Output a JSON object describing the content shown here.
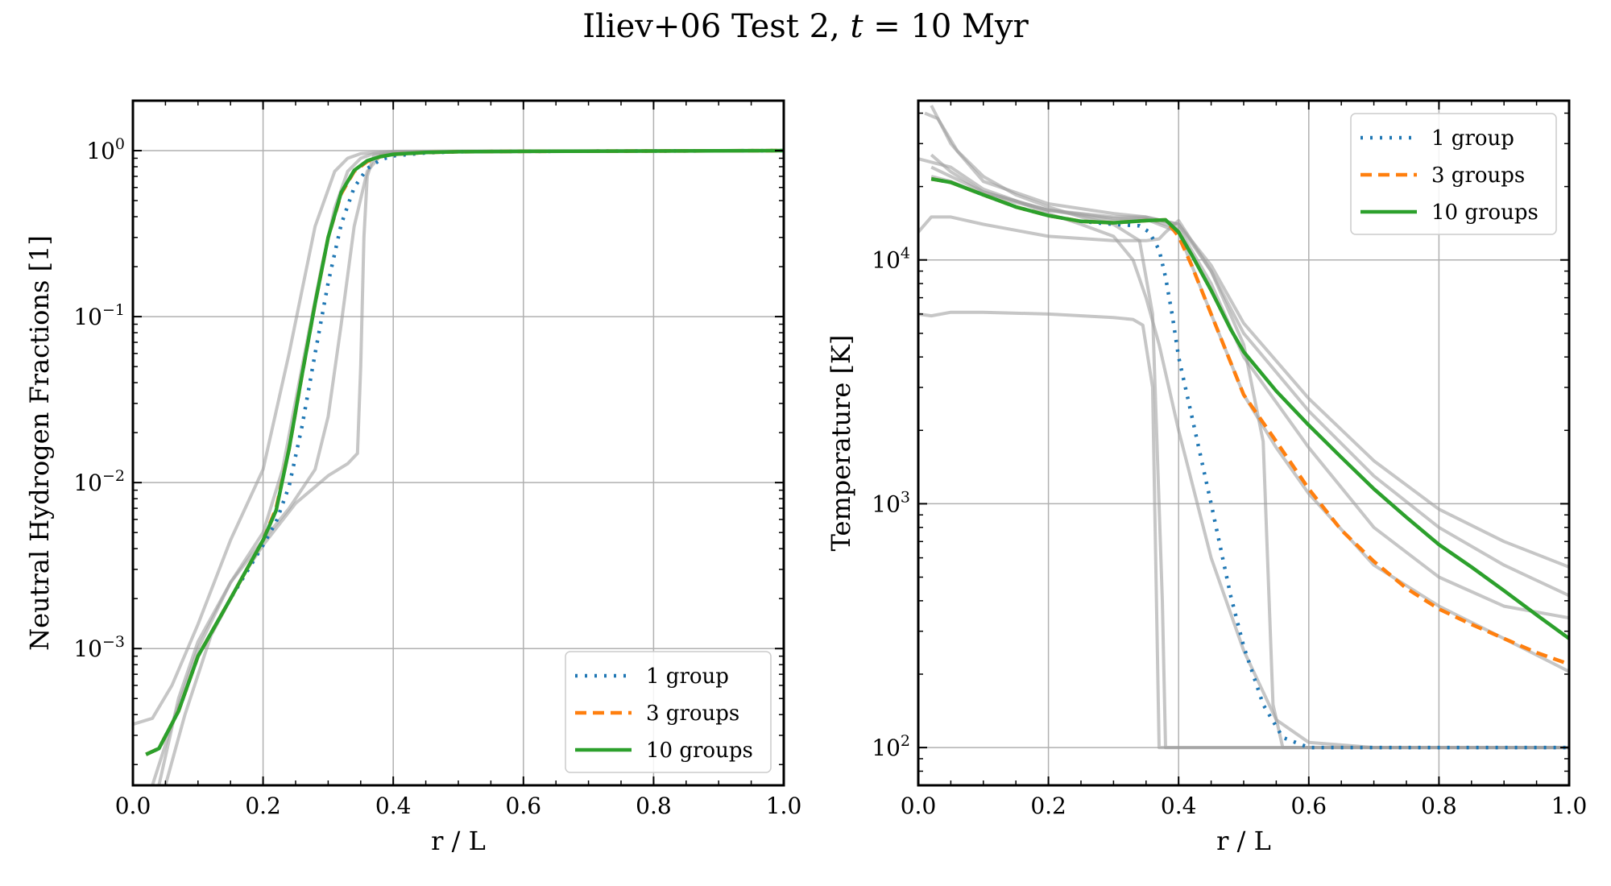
{
  "figure": {
    "title": "Iliev+06 Test 2, t = 10 Myr",
    "title_plain": "Iliev+06 Test 2, ",
    "title_t": "t",
    "title_rest": " = 10 Myr"
  },
  "colors": {
    "group1": "#1f77b4",
    "group3": "#ff7f0e",
    "group10": "#2ca02c",
    "reference": "#a0a0a0",
    "grid": "#b0b0b0"
  },
  "chart_data": [
    {
      "type": "line",
      "panel": "left",
      "xlabel": "r / L",
      "ylabel": "Neutral Hydrogen Fractions [1]",
      "xscale": "linear",
      "yscale": "log",
      "xlim": [
        0.0,
        1.0
      ],
      "ylim": [
        0.00015,
        2.0
      ],
      "xticks": [
        0.0,
        0.2,
        0.4,
        0.6,
        0.8,
        1.0
      ],
      "xtick_labels": [
        "0.0",
        "0.2",
        "0.4",
        "0.6",
        "0.8",
        "1.0"
      ],
      "yticks": [
        0.001,
        0.01,
        0.1,
        1
      ],
      "ytick_bases": [
        "10",
        "10",
        "10",
        "10"
      ],
      "ytick_exps": [
        "−3",
        "−2",
        "−1",
        "0"
      ],
      "grid": true,
      "legend_loc": "lower right",
      "series": [
        {
          "name": "1 group",
          "style": "dotted",
          "color": "#1f77b4",
          "x": [
            0.02,
            0.04,
            0.07,
            0.1,
            0.15,
            0.2,
            0.22,
            0.24,
            0.26,
            0.28,
            0.3,
            0.32,
            0.34,
            0.36,
            0.38,
            0.4,
            0.45,
            0.5,
            0.6,
            0.8,
            1.0
          ],
          "y": [
            0.00023,
            0.00025,
            0.00042,
            0.0009,
            0.002,
            0.0042,
            0.0058,
            0.0095,
            0.022,
            0.06,
            0.16,
            0.36,
            0.6,
            0.78,
            0.88,
            0.93,
            0.97,
            0.985,
            0.99,
            0.995,
            1.0
          ]
        },
        {
          "name": "3 groups",
          "style": "dashed",
          "color": "#ff7f0e",
          "x": [
            0.02,
            0.04,
            0.07,
            0.1,
            0.15,
            0.2,
            0.22,
            0.24,
            0.26,
            0.28,
            0.3,
            0.32,
            0.34,
            0.36,
            0.38,
            0.4,
            0.45,
            0.5,
            0.6,
            0.8,
            1.0
          ],
          "y": [
            0.00023,
            0.00025,
            0.00042,
            0.0009,
            0.002,
            0.0045,
            0.007,
            0.016,
            0.045,
            0.12,
            0.3,
            0.55,
            0.75,
            0.86,
            0.92,
            0.95,
            0.975,
            0.985,
            0.99,
            0.995,
            1.0
          ]
        },
        {
          "name": "10 groups",
          "style": "solid",
          "color": "#2ca02c",
          "x": [
            0.02,
            0.04,
            0.07,
            0.1,
            0.15,
            0.2,
            0.22,
            0.24,
            0.26,
            0.28,
            0.3,
            0.32,
            0.34,
            0.36,
            0.38,
            0.4,
            0.45,
            0.5,
            0.6,
            0.8,
            1.0
          ],
          "y": [
            0.00023,
            0.00025,
            0.00042,
            0.0009,
            0.002,
            0.0045,
            0.0068,
            0.016,
            0.045,
            0.12,
            0.3,
            0.56,
            0.76,
            0.87,
            0.92,
            0.95,
            0.975,
            0.985,
            0.99,
            0.995,
            1.0
          ]
        }
      ],
      "reference_curves": [
        {
          "x": [
            0.0,
            0.03,
            0.06,
            0.1,
            0.15,
            0.2,
            0.24,
            0.28,
            0.31,
            0.33,
            0.35,
            0.38,
            0.4,
            0.5,
            1.0
          ],
          "y": [
            0.00035,
            0.00038,
            0.0006,
            0.0014,
            0.0045,
            0.012,
            0.06,
            0.35,
            0.75,
            0.9,
            0.96,
            0.98,
            0.99,
            0.995,
            1.0
          ]
        },
        {
          "x": [
            0.05,
            0.08,
            0.12,
            0.17,
            0.2,
            0.25,
            0.3,
            0.33,
            0.345,
            0.35,
            0.355,
            0.36,
            0.37,
            0.4,
            1.0
          ],
          "y": [
            0.00015,
            0.0004,
            0.0012,
            0.0028,
            0.0042,
            0.0075,
            0.011,
            0.013,
            0.015,
            0.05,
            0.3,
            0.7,
            0.93,
            0.98,
            1.0
          ]
        },
        {
          "x": [
            0.04,
            0.07,
            0.1,
            0.15,
            0.2,
            0.24,
            0.28,
            0.3,
            0.32,
            0.34,
            0.36,
            0.38,
            0.4,
            0.5,
            1.0
          ],
          "y": [
            0.00015,
            0.0005,
            0.0011,
            0.0025,
            0.0045,
            0.007,
            0.012,
            0.025,
            0.09,
            0.35,
            0.75,
            0.93,
            0.97,
            0.99,
            1.0
          ]
        },
        {
          "x": [
            0.03,
            0.06,
            0.1,
            0.15,
            0.2,
            0.23,
            0.26,
            0.29,
            0.31,
            0.33,
            0.35,
            0.37,
            0.4,
            1.0
          ],
          "y": [
            0.00015,
            0.00035,
            0.001,
            0.0025,
            0.005,
            0.012,
            0.05,
            0.2,
            0.45,
            0.75,
            0.9,
            0.96,
            0.985,
            1.0
          ]
        }
      ]
    },
    {
      "type": "line",
      "panel": "right",
      "xlabel": "r / L",
      "ylabel": "Temperature [K]",
      "xscale": "linear",
      "yscale": "log",
      "xlim": [
        0.0,
        1.0
      ],
      "ylim": [
        70,
        45000
      ],
      "xticks": [
        0.0,
        0.2,
        0.4,
        0.6,
        0.8,
        1.0
      ],
      "xtick_labels": [
        "0.0",
        "0.2",
        "0.4",
        "0.6",
        "0.8",
        "1.0"
      ],
      "yticks": [
        100,
        1000,
        10000
      ],
      "ytick_bases": [
        "10",
        "10",
        "10"
      ],
      "ytick_exps": [
        "2",
        "3",
        "4"
      ],
      "grid": true,
      "legend_loc": "upper right",
      "series": [
        {
          "name": "1 group",
          "style": "dotted",
          "color": "#1f77b4",
          "x": [
            0.02,
            0.05,
            0.1,
            0.15,
            0.2,
            0.25,
            0.3,
            0.34,
            0.355,
            0.37,
            0.38,
            0.39,
            0.4,
            0.42,
            0.45,
            0.48,
            0.5,
            0.53,
            0.56,
            0.6,
            0.7,
            0.8,
            1.0
          ],
          "y": [
            21500,
            20800,
            18500,
            16500,
            15200,
            14400,
            14000,
            13800,
            13000,
            11000,
            8500,
            6000,
            4000,
            2300,
            1000,
            420,
            260,
            150,
            110,
            100,
            100,
            100,
            100
          ]
        },
        {
          "name": "3 groups",
          "style": "dashed",
          "color": "#ff7f0e",
          "x": [
            0.02,
            0.05,
            0.1,
            0.15,
            0.2,
            0.25,
            0.3,
            0.35,
            0.38,
            0.4,
            0.42,
            0.45,
            0.48,
            0.5,
            0.55,
            0.6,
            0.65,
            0.7,
            0.75,
            0.8,
            0.85,
            0.9,
            0.95,
            1.0
          ],
          "y": [
            21500,
            20800,
            18500,
            16500,
            15200,
            14400,
            14200,
            14500,
            14600,
            12500,
            9500,
            6000,
            3800,
            2800,
            1800,
            1150,
            780,
            580,
            450,
            370,
            320,
            280,
            245,
            220
          ]
        },
        {
          "name": "10 groups",
          "style": "solid",
          "color": "#2ca02c",
          "x": [
            0.02,
            0.05,
            0.1,
            0.15,
            0.2,
            0.25,
            0.3,
            0.35,
            0.38,
            0.4,
            0.42,
            0.45,
            0.48,
            0.5,
            0.55,
            0.6,
            0.65,
            0.7,
            0.75,
            0.8,
            0.85,
            0.9,
            0.95,
            1.0
          ],
          "y": [
            21500,
            20800,
            18500,
            16500,
            15200,
            14400,
            14200,
            14500,
            14600,
            13000,
            10500,
            7500,
            5200,
            4200,
            2900,
            2100,
            1550,
            1150,
            880,
            680,
            550,
            440,
            350,
            280
          ]
        }
      ],
      "reference_curves": [
        {
          "x": [
            0.01,
            0.03,
            0.06,
            0.1,
            0.15,
            0.2,
            0.25,
            0.3,
            0.34,
            0.36,
            0.375,
            0.38,
            0.4,
            0.6,
            1.0
          ],
          "y": [
            40000,
            38000,
            28000,
            22000,
            18500,
            16500,
            15000,
            14000,
            12000,
            6000,
            400,
            100,
            100,
            100,
            100
          ]
        },
        {
          "x": [
            0.0,
            0.05,
            0.1,
            0.15,
            0.2,
            0.25,
            0.3,
            0.33,
            0.35,
            0.37,
            0.4,
            0.45,
            0.5,
            0.55,
            0.6,
            0.7,
            1.0
          ],
          "y": [
            26000,
            24000,
            19500,
            17500,
            15500,
            14000,
            12500,
            10000,
            7000,
            4500,
            2000,
            600,
            250,
            130,
            105,
            100,
            100
          ]
        },
        {
          "x": [
            0.0,
            0.02,
            0.05,
            0.1,
            0.2,
            0.3,
            0.35,
            0.37,
            0.38,
            0.4,
            0.45,
            0.5,
            0.53,
            0.545,
            0.56,
            0.6,
            1.0
          ],
          "y": [
            13000,
            15000,
            15000,
            14000,
            12500,
            12000,
            12000,
            12200,
            13000,
            14500,
            9000,
            4500,
            1800,
            150,
            100,
            100,
            100
          ]
        },
        {
          "x": [
            0.0,
            0.02,
            0.05,
            0.1,
            0.2,
            0.3,
            0.33,
            0.345,
            0.36,
            0.37,
            0.4,
            0.6,
            1.0
          ],
          "y": [
            6000,
            5900,
            6100,
            6100,
            6000,
            5800,
            5700,
            5400,
            3000,
            100,
            100,
            100,
            100
          ]
        },
        {
          "x": [
            0.02,
            0.05,
            0.1,
            0.2,
            0.3,
            0.35,
            0.4,
            0.45,
            0.5,
            0.6,
            0.7,
            0.8,
            0.9,
            1.0
          ],
          "y": [
            27000,
            23000,
            19000,
            16000,
            15000,
            15000,
            14000,
            9500,
            5500,
            2700,
            1500,
            950,
            700,
            550
          ]
        },
        {
          "x": [
            0.02,
            0.05,
            0.1,
            0.2,
            0.3,
            0.35,
            0.4,
            0.45,
            0.5,
            0.6,
            0.7,
            0.8,
            0.9,
            1.0
          ],
          "y": [
            43000,
            30000,
            21000,
            17000,
            15500,
            15000,
            14000,
            9000,
            5000,
            2400,
            1300,
            800,
            560,
            420
          ]
        },
        {
          "x": [
            0.02,
            0.05,
            0.1,
            0.2,
            0.3,
            0.35,
            0.4,
            0.45,
            0.5,
            0.6,
            0.7,
            0.8,
            0.9,
            1.0
          ],
          "y": [
            24000,
            22000,
            19000,
            16000,
            14800,
            14800,
            13500,
            8000,
            4000,
            1700,
            800,
            500,
            380,
            340
          ]
        },
        {
          "x": [
            0.02,
            0.05,
            0.1,
            0.2,
            0.3,
            0.35,
            0.4,
            0.45,
            0.5,
            0.55,
            0.6,
            0.7,
            0.8,
            0.9,
            1.0
          ],
          "y": [
            22000,
            21000,
            18500,
            16000,
            14500,
            14700,
            13000,
            6000,
            2800,
            1700,
            1100,
            560,
            380,
            280,
            205
          ]
        }
      ]
    }
  ]
}
